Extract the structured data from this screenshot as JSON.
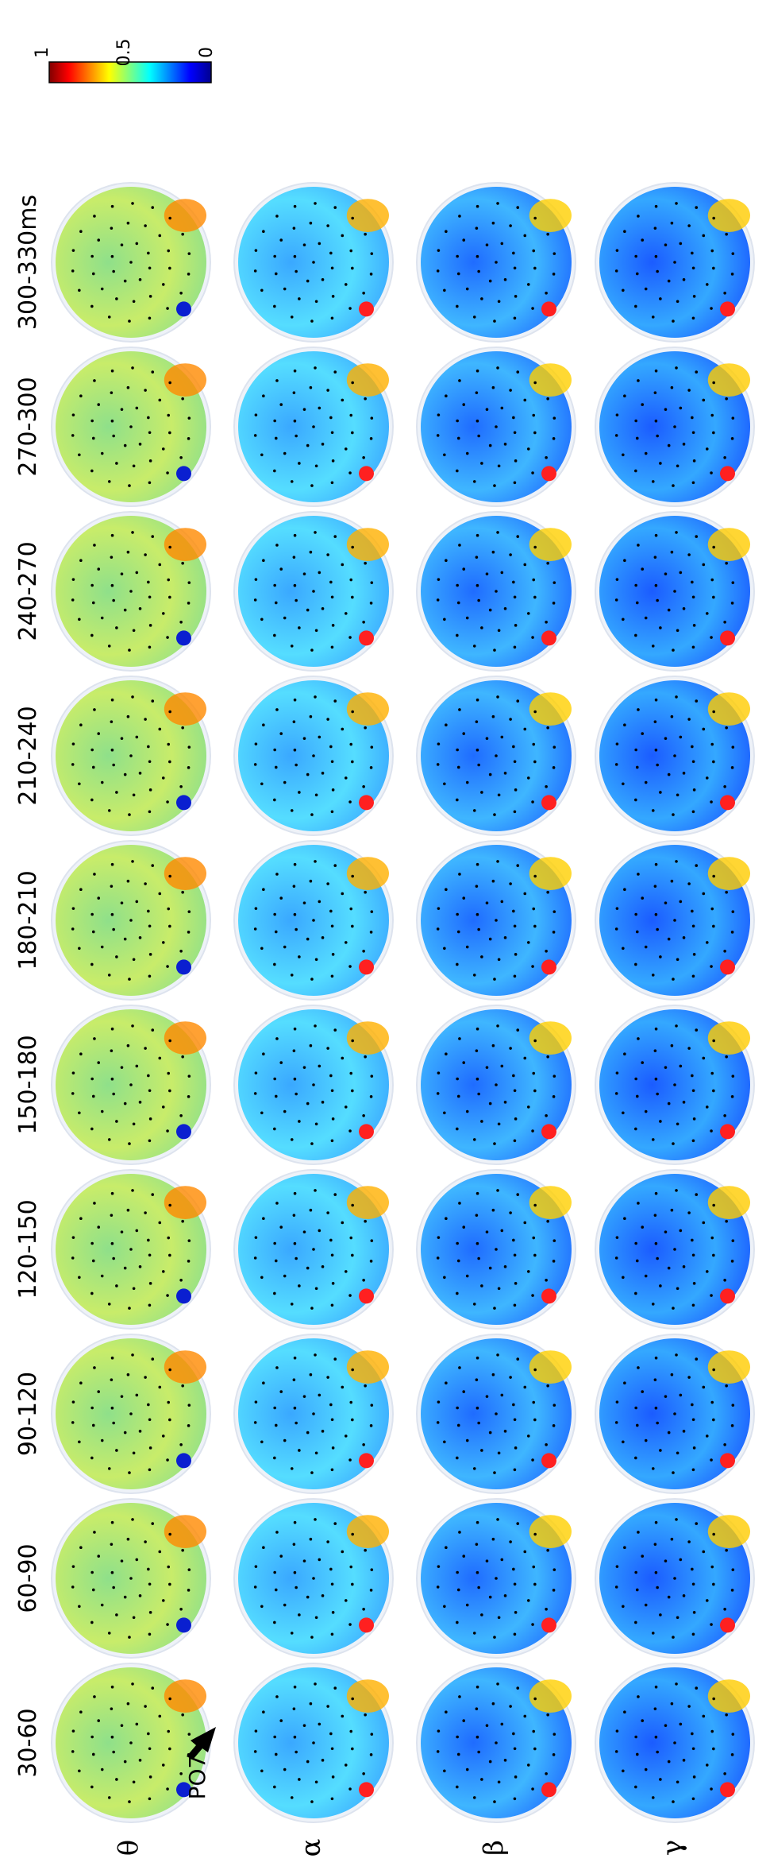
{
  "figure": {
    "time_windows": [
      "30-60",
      "60-90",
      "90-120",
      "120-150",
      "150-180",
      "180-210",
      "210-240",
      "240-270",
      "270-300",
      "300-330ms"
    ],
    "bands": [
      {
        "key": "theta",
        "symbol": "θ"
      },
      {
        "key": "alpha",
        "symbol": "α"
      },
      {
        "key": "beta",
        "symbol": "β"
      },
      {
        "key": "gamma",
        "symbol": "γ"
      }
    ],
    "electrode_callout": "PO7",
    "colorbar": {
      "ticks": [
        "1",
        "0.5",
        "0"
      ],
      "range": [
        0,
        1
      ],
      "colormap": "jet"
    }
  }
}
